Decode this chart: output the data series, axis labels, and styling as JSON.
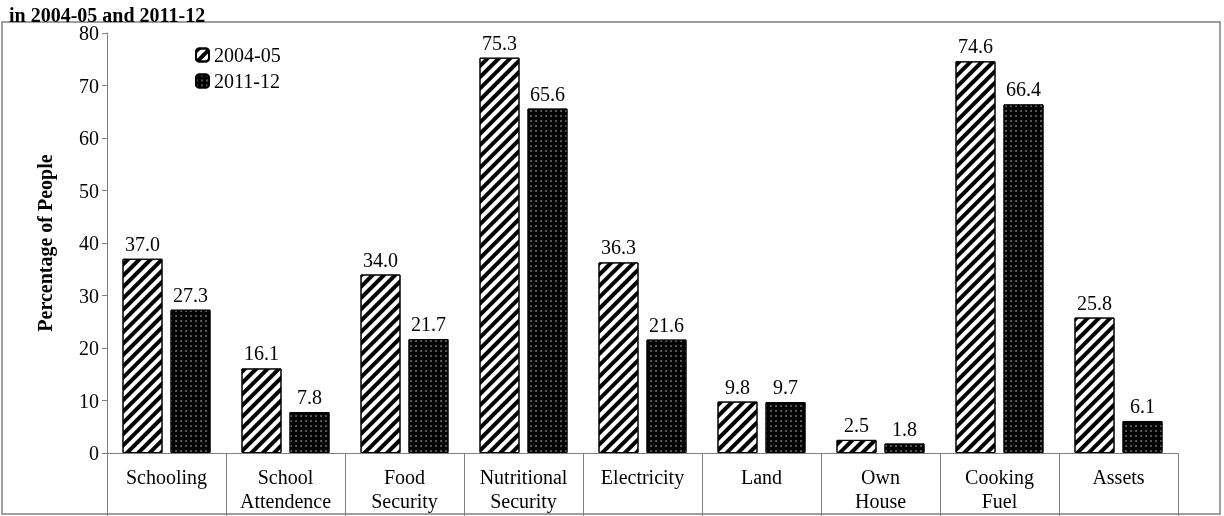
{
  "chart_data": {
    "type": "bar",
    "title": "in 2004-05 and 2011-12",
    "ylabel": "Percentage of People",
    "categories": [
      "Schooling",
      "School\nAttendence",
      "Food\nSecurity",
      "Nutritional\nSecurity",
      "Electricity",
      "Land",
      "Own\nHouse",
      "Cooking\nFuel",
      "Assets"
    ],
    "series": [
      {
        "name": "2004-05",
        "color": "#ffffff",
        "values": [
          37.0,
          16.1,
          34.0,
          75.3,
          36.3,
          9.8,
          2.5,
          74.6,
          25.8
        ],
        "value_labels": [
          "37.0",
          "16.1",
          "34.0",
          "75.3",
          "36.3",
          "9.8",
          "2.5",
          "74.6",
          "25.8"
        ]
      },
      {
        "name": "2011-12",
        "color": "#000000",
        "values": [
          27.3,
          7.8,
          21.7,
          65.6,
          21.6,
          9.7,
          1.8,
          66.4,
          6.1
        ],
        "value_labels": [
          "27.3",
          "7.8",
          "21.7",
          "65.6",
          "21.6",
          "9.7",
          "1.8",
          "66.4",
          "6.1"
        ]
      }
    ],
    "ylim": [
      0,
      80
    ],
    "yticks": [
      0,
      10,
      20,
      30,
      40,
      50,
      60,
      70,
      80
    ],
    "grid": false,
    "legend": "top left"
  }
}
